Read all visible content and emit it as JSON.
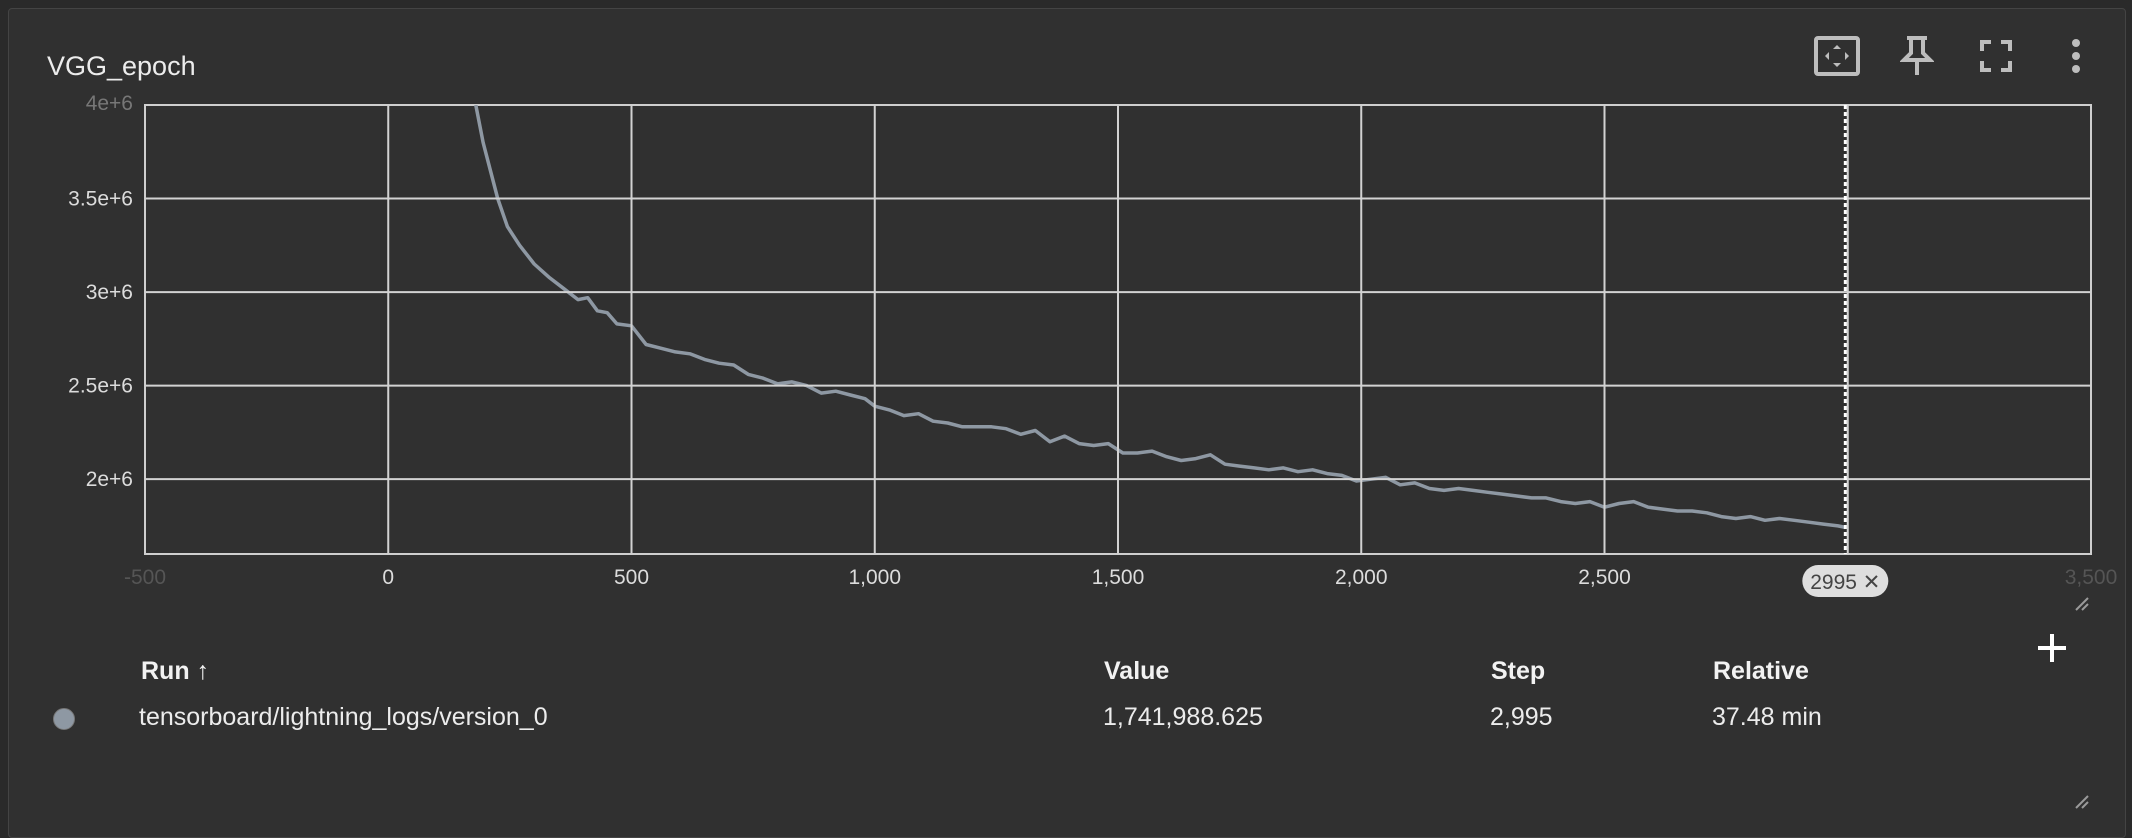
{
  "card": {
    "title": "VGG_epoch"
  },
  "toolbar": {
    "icons": [
      "fit-domain-icon",
      "pin-icon",
      "fullscreen-icon",
      "more-vert-icon"
    ]
  },
  "chart_data": {
    "type": "line",
    "title": "VGG_epoch",
    "xlim": [
      -500,
      3500
    ],
    "ylim": [
      1600000,
      4000000
    ],
    "x_ticks": [
      -500,
      0,
      500,
      1000,
      1500,
      2000,
      2500,
      3000,
      3500
    ],
    "x_tick_labels": [
      "-500",
      "0",
      "500",
      "1,000",
      "1,500",
      "2,000",
      "2,500",
      "3,000",
      "3,500"
    ],
    "y_ticks": [
      2000000,
      2500000,
      3000000,
      3500000,
      4000000
    ],
    "y_tick_labels": [
      "2e+6",
      "2.5e+6",
      "3e+6",
      "3.5e+6",
      "4e+6"
    ],
    "grid": true,
    "series_color": "#8e98a3",
    "series": [
      {
        "name": "tensorboard/lightning_logs/version_0",
        "x": [
          180,
          195,
          210,
          225,
          245,
          270,
          300,
          330,
          360,
          390,
          410,
          430,
          450,
          470,
          500,
          530,
          560,
          590,
          620,
          650,
          680,
          710,
          740,
          770,
          800,
          830,
          860,
          890,
          920,
          950,
          980,
          1000,
          1030,
          1060,
          1090,
          1120,
          1150,
          1180,
          1210,
          1240,
          1270,
          1300,
          1330,
          1360,
          1390,
          1420,
          1450,
          1480,
          1510,
          1540,
          1570,
          1600,
          1630,
          1660,
          1690,
          1720,
          1750,
          1780,
          1810,
          1840,
          1870,
          1900,
          1930,
          1960,
          1990,
          2020,
          2050,
          2080,
          2110,
          2140,
          2170,
          2200,
          2230,
          2260,
          2290,
          2320,
          2350,
          2380,
          2410,
          2440,
          2470,
          2500,
          2530,
          2560,
          2590,
          2620,
          2650,
          2680,
          2710,
          2740,
          2770,
          2800,
          2830,
          2860,
          2890,
          2920,
          2950,
          2980,
          2995
        ],
        "y": [
          4000000,
          3800000,
          3650000,
          3500000,
          3350000,
          3250000,
          3150000,
          3080000,
          3020000,
          2960000,
          2970000,
          2900000,
          2890000,
          2830000,
          2820000,
          2720000,
          2700000,
          2680000,
          2670000,
          2640000,
          2620000,
          2610000,
          2560000,
          2540000,
          2510000,
          2520000,
          2500000,
          2460000,
          2470000,
          2450000,
          2430000,
          2390000,
          2370000,
          2340000,
          2350000,
          2310000,
          2300000,
          2280000,
          2280000,
          2280000,
          2270000,
          2240000,
          2260000,
          2200000,
          2230000,
          2190000,
          2180000,
          2190000,
          2140000,
          2140000,
          2150000,
          2120000,
          2100000,
          2110000,
          2130000,
          2080000,
          2070000,
          2060000,
          2050000,
          2060000,
          2040000,
          2050000,
          2030000,
          2020000,
          1990000,
          2000000,
          2010000,
          1970000,
          1980000,
          1950000,
          1940000,
          1950000,
          1940000,
          1930000,
          1920000,
          1910000,
          1900000,
          1900000,
          1880000,
          1870000,
          1880000,
          1850000,
          1870000,
          1880000,
          1850000,
          1840000,
          1830000,
          1830000,
          1820000,
          1800000,
          1790000,
          1800000,
          1780000,
          1790000,
          1780000,
          1770000,
          1760000,
          1750000,
          1742000
        ]
      }
    ],
    "cursor": {
      "step": 2995,
      "label": "2995 ✕"
    }
  },
  "table": {
    "headers": {
      "run": "Run",
      "sort": "↑",
      "value": "Value",
      "step": "Step",
      "relative": "Relative"
    },
    "rows": [
      {
        "run": "tensorboard/lightning_logs/version_0",
        "value": "1,741,988.625",
        "step": "2,995",
        "relative": "37.48 min",
        "color": "#8e98a3"
      }
    ]
  }
}
